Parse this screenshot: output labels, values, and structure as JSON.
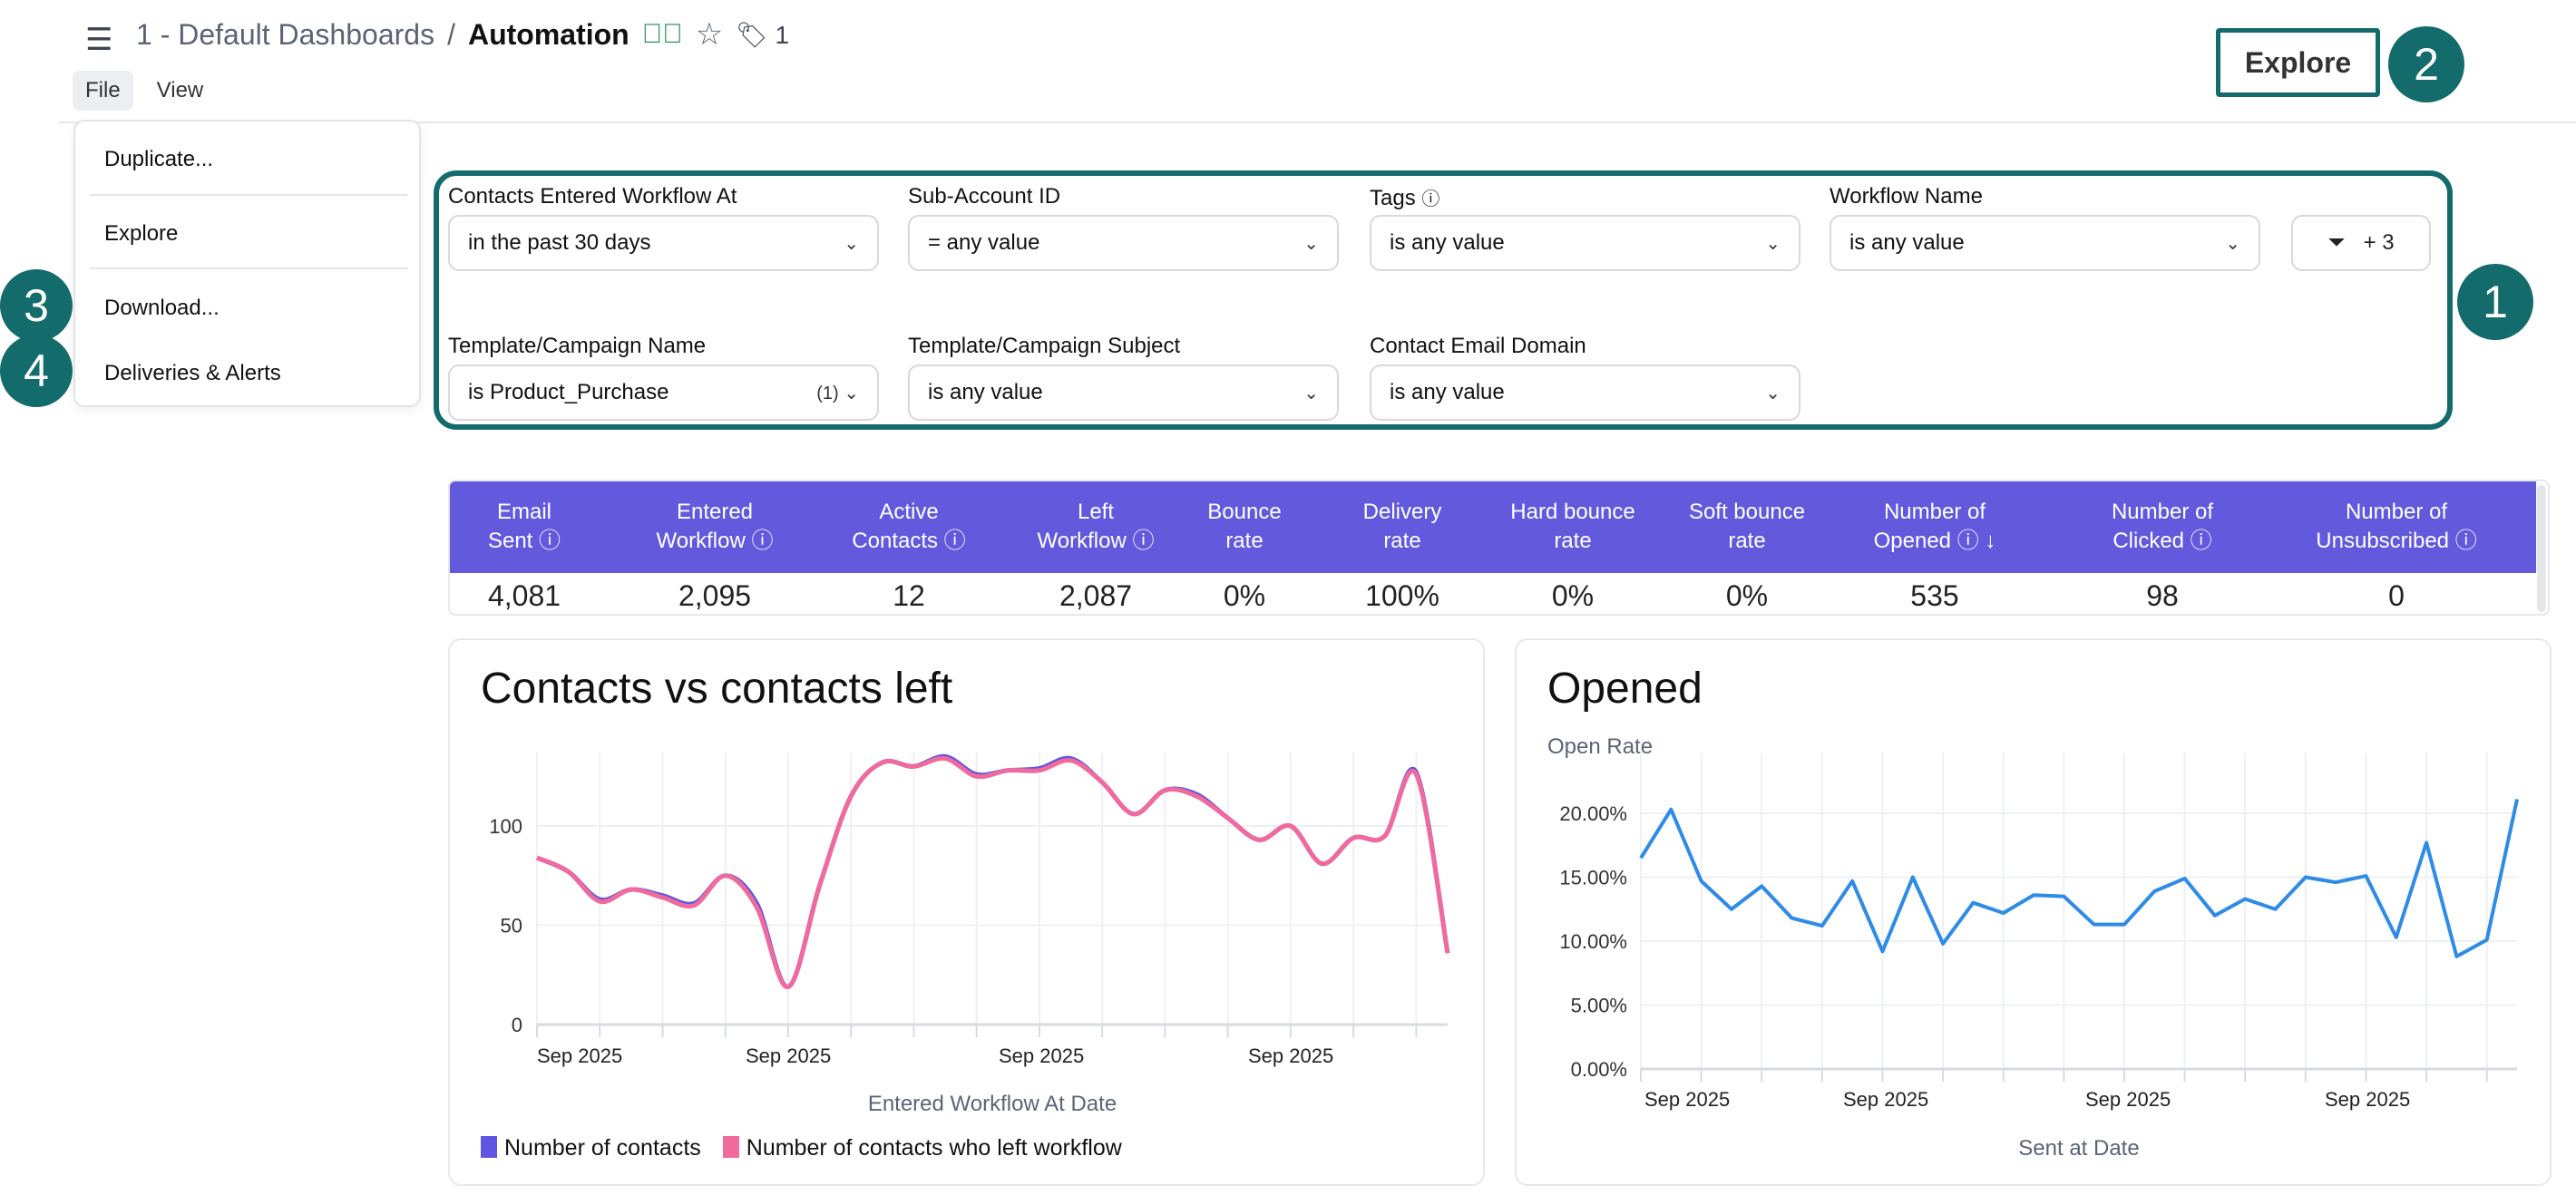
{
  "header": {
    "menu_icon": "hamburger-icon",
    "breadcrumb_parent": "1 - Default Dashboards",
    "separator": "/",
    "title": "Automation",
    "verified_icon": "check-circle-icon",
    "favorite_icon": "star-icon",
    "tag_icon": "tag-icon",
    "tag_count": "1",
    "explore_label": "Explore"
  },
  "menubar": {
    "items": [
      "File",
      "View"
    ],
    "active": "File"
  },
  "file_menu": {
    "items": [
      "Duplicate...",
      "Explore",
      "Download...",
      "Deliveries & Alerts"
    ]
  },
  "annotations": {
    "badges": [
      "1",
      "2",
      "3",
      "4"
    ],
    "color": "#146b6b"
  },
  "filters": {
    "items": [
      {
        "label": "Contacts Entered Workflow At",
        "value": "in the past 30 days",
        "count": ""
      },
      {
        "label": "Sub-Account ID",
        "value": "= any value",
        "count": ""
      },
      {
        "label": "Tags",
        "value": "is any value",
        "count": "",
        "info": true
      },
      {
        "label": "Workflow Name",
        "value": "is any value",
        "count": ""
      },
      {
        "label": "Template/Campaign Name",
        "value": "is Product_Purchase",
        "count": "(1)"
      },
      {
        "label": "Template/Campaign Subject",
        "value": "is any value",
        "count": ""
      },
      {
        "label": "Contact Email Domain",
        "value": "is any value",
        "count": ""
      }
    ],
    "more_button": "+ 3",
    "filter_icon": "funnel-icon"
  },
  "kpi_table": {
    "header_color": "#6359dd",
    "columns": [
      {
        "l1": "Email",
        "l2": "Sent ⓘ",
        "value": "4,081"
      },
      {
        "l1": "Entered",
        "l2": "Workflow ⓘ",
        "value": "2,095"
      },
      {
        "l1": "Active",
        "l2": "Contacts ⓘ",
        "value": "12"
      },
      {
        "l1": "Left",
        "l2": "Workflow ⓘ",
        "value": "2,087"
      },
      {
        "l1": "Bounce",
        "l2": "rate",
        "value": "0%"
      },
      {
        "l1": "Delivery",
        "l2": "rate",
        "value": "100%"
      },
      {
        "l1": "Hard bounce",
        "l2": "rate",
        "value": "0%"
      },
      {
        "l1": "Soft bounce",
        "l2": "rate",
        "value": "0%"
      },
      {
        "l1": "Number of",
        "l2": "Opened ⓘ ↓",
        "value": "535"
      },
      {
        "l1": "Number of",
        "l2": "Clicked ⓘ",
        "value": "98"
      },
      {
        "l1": "Number of",
        "l2": "Unsubscribed ⓘ",
        "value": "0"
      }
    ]
  },
  "chart_data": [
    {
      "type": "line",
      "title": "Contacts vs contacts left",
      "xlabel": "Entered Workflow At Date",
      "ylabel": "",
      "ylim": [
        0,
        145
      ],
      "yticks": [
        "0",
        "50",
        "100"
      ],
      "xtick_labels": [
        "Sep 2025",
        "Sep 2025",
        "Sep 2025",
        "Sep 2025"
      ],
      "grid": true,
      "legend": "bottom-left",
      "smooth": true,
      "series": [
        {
          "name": "Number of contacts",
          "color": "#5f55e0",
          "values": [
            84,
            77,
            63,
            68,
            65,
            61,
            75,
            61,
            19,
            70,
            115,
            132,
            130,
            135,
            126,
            128,
            129,
            134,
            122,
            106,
            118,
            116,
            104,
            93,
            100,
            81,
            94,
            95,
            127,
            36
          ]
        },
        {
          "name": "Number of contacts who left workflow",
          "color": "#f06a9e",
          "values": [
            84,
            77,
            62,
            68,
            64,
            60,
            75,
            59,
            19,
            70,
            115,
            132,
            130,
            134,
            125,
            128,
            128,
            133,
            122,
            106,
            118,
            115,
            104,
            93,
            100,
            81,
            94,
            95,
            126,
            36
          ]
        }
      ]
    },
    {
      "type": "line",
      "title": "Opened",
      "ylabel": "Open Rate",
      "xlabel": "Sent at Date",
      "ylim": [
        0,
        22
      ],
      "yticks": [
        "0.00%",
        "5.00%",
        "10.00%",
        "15.00%",
        "20.00%"
      ],
      "xtick_labels": [
        "Sep 2025",
        "Sep 2025",
        "Sep 2025",
        "Sep 2025"
      ],
      "grid": true,
      "series": [
        {
          "color": "#2e8be6",
          "values": [
            16.5,
            20.3,
            14.7,
            12.5,
            14.3,
            11.8,
            11.2,
            14.7,
            9.2,
            15.0,
            9.8,
            13.0,
            12.2,
            13.6,
            13.5,
            11.3,
            11.3,
            13.9,
            14.9,
            12.0,
            13.3,
            12.5,
            15.0,
            14.6,
            15.1,
            10.3,
            17.7,
            8.8,
            10.1,
            21.1
          ]
        }
      ]
    }
  ]
}
